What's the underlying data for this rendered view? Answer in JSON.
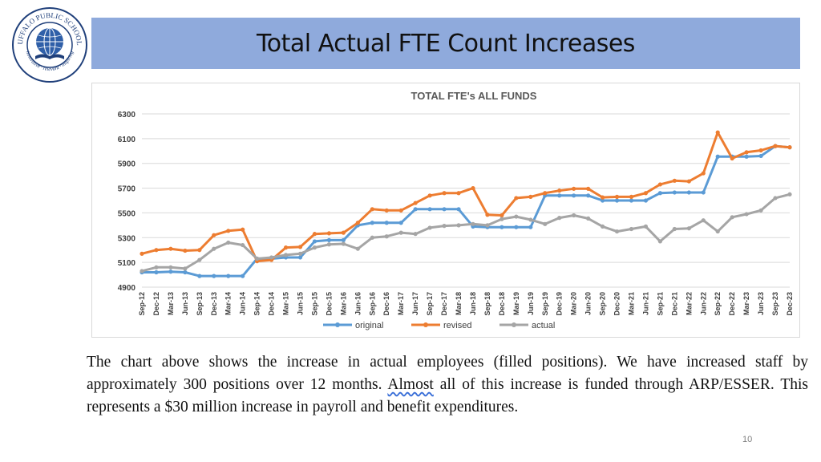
{
  "slide": {
    "title": "Total Actual FTE Count Increases",
    "page_number": "10",
    "caption_parts": [
      "The chart above shows the increase in actual employees (filled positions). We have increased staff by approximately 300 positions over 12 months. ",
      "Almost",
      " all of this increase is funded through ARP/ESSER. This represents a $30 million increase in payroll and benefit expenditures."
    ]
  },
  "logo": {
    "ring_text_top": "BUFFALO PUBLIC SCHOOLS",
    "ring_text_bottom": "innovative · relevant · inspiring",
    "colors": {
      "ring": "#1f3f7a",
      "globe": "#2f5fa8"
    }
  },
  "chart_data": {
    "type": "line",
    "title": "TOTAL FTE's ALL FUNDS",
    "xlabel": "",
    "ylabel": "",
    "ylim": [
      4900,
      6300
    ],
    "yticks": [
      4900,
      5100,
      5300,
      5500,
      5700,
      5900,
      6100,
      6300
    ],
    "grid": true,
    "legend_position": "bottom",
    "categories": [
      "Sep-12",
      "Dec-12",
      "Mar-13",
      "Jun-13",
      "Sep-13",
      "Dec-13",
      "Mar-14",
      "Jun-14",
      "Sep-14",
      "Dec-14",
      "Mar-15",
      "Jun-15",
      "Sep-15",
      "Dec-15",
      "Mar-16",
      "Jun-16",
      "Sep-16",
      "Dec-16",
      "Mar-17",
      "Jun-17",
      "Sep-17",
      "Dec-17",
      "Mar-18",
      "Jun-18",
      "Sep-18",
      "Dec-18",
      "Mar-19",
      "Jun-19",
      "Sep-19",
      "Dec-19",
      "Mar-20",
      "Jun-20",
      "Sep-20",
      "Dec-20",
      "Mar-21",
      "Jun-21",
      "Sep-21",
      "Dec-21",
      "Mar-22",
      "Jun-22",
      "Sep-22",
      "Dec-22",
      "Mar-23",
      "Jun-23",
      "Sep-23",
      "Dec-23"
    ],
    "series": [
      {
        "name": "original",
        "color": "#5b9bd5",
        "values": [
          5020,
          5020,
          5025,
          5020,
          4990,
          4990,
          4990,
          4990,
          5130,
          5130,
          5140,
          5140,
          5270,
          5280,
          5280,
          5400,
          5420,
          5420,
          5420,
          5530,
          5530,
          5530,
          5530,
          5390,
          5385,
          5385,
          5385,
          5385,
          5640,
          5640,
          5640,
          5640,
          5600,
          5600,
          5600,
          5600,
          5660,
          5665,
          5665,
          5665,
          5955,
          5955,
          5955,
          5960,
          6040,
          6030
        ]
      },
      {
        "name": "revised",
        "color": "#ed7d31",
        "values": [
          5170,
          5200,
          5210,
          5195,
          5200,
          5320,
          5355,
          5365,
          5110,
          5120,
          5220,
          5225,
          5330,
          5335,
          5340,
          5420,
          5530,
          5520,
          5520,
          5580,
          5640,
          5660,
          5660,
          5700,
          5485,
          5480,
          5620,
          5630,
          5660,
          5680,
          5695,
          5695,
          5625,
          5630,
          5630,
          5660,
          5730,
          5760,
          5755,
          5820,
          6150,
          5940,
          5990,
          6005,
          6040,
          6030
        ]
      },
      {
        "name": "actual",
        "color": "#a5a5a5",
        "values": [
          5030,
          5060,
          5060,
          5050,
          5120,
          5210,
          5260,
          5240,
          5130,
          5140,
          5160,
          5170,
          5220,
          5245,
          5250,
          5210,
          5300,
          5310,
          5340,
          5330,
          5380,
          5395,
          5400,
          5410,
          5400,
          5450,
          5470,
          5445,
          5410,
          5460,
          5480,
          5455,
          5390,
          5350,
          5370,
          5390,
          5270,
          5370,
          5375,
          5440,
          5350,
          5465,
          5490,
          5520,
          5620,
          5650
        ]
      }
    ]
  }
}
